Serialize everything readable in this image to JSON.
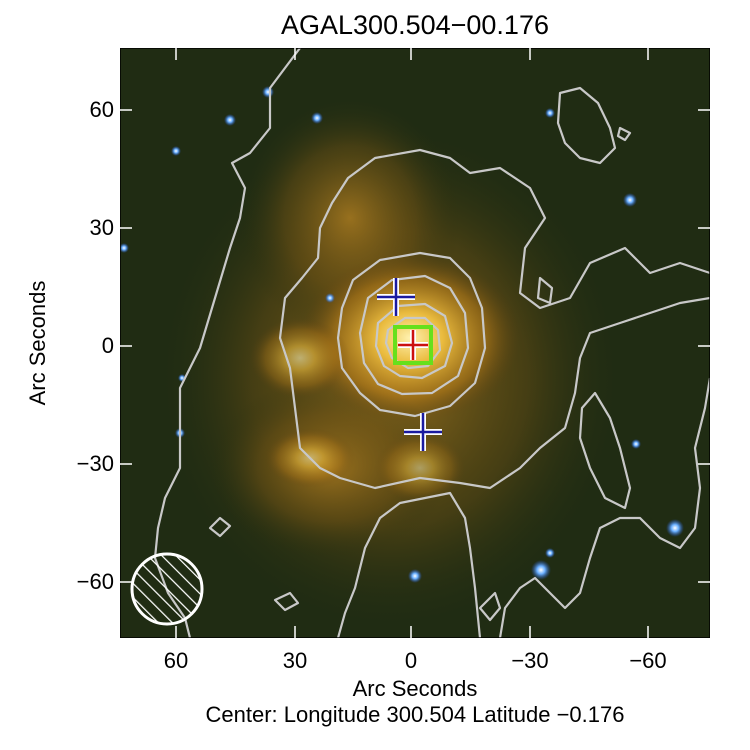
{
  "title": "AGAL300.504−00.176",
  "xlabel": "Arc Seconds",
  "ylabel": "Arc Seconds",
  "center_caption": "Center:  Longitude 300.504 Latitude −0.176",
  "x_ticks": [
    "60",
    "30",
    "0",
    "−30",
    "−60"
  ],
  "y_ticks": [
    "60",
    "30",
    "0",
    "−30",
    "−60"
  ],
  "colors": {
    "background_sky": "#1e2a10",
    "emission": "#e0a830",
    "contours": "#c8c8c8",
    "source_cross": "#1a1aa0",
    "peak_marker": "#cc1010",
    "box": "#66e01c",
    "beam": "#ffffff"
  },
  "markers": [
    {
      "type": "blue-cross",
      "x_arcsec": 3,
      "y_arcsec": 12
    },
    {
      "type": "blue-cross",
      "x_arcsec": -3,
      "y_arcsec": -22
    },
    {
      "type": "red-cross",
      "x_arcsec": -1,
      "y_arcsec": 0
    },
    {
      "type": "green-box",
      "x_arcsec": -1,
      "y_arcsec": 0
    }
  ]
}
